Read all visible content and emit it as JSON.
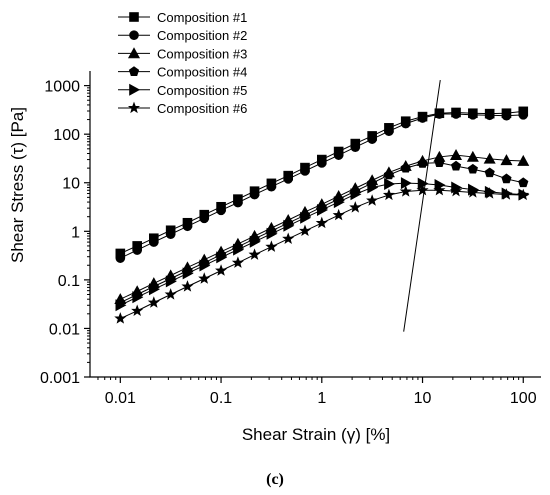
{
  "chart_data": {
    "type": "line",
    "xscale": "log",
    "yscale": "log",
    "xlabel": "Shear Strain (γ) [%]",
    "ylabel": "Shear Stress (τ) [Pa]",
    "xlim": [
      0.005,
      150
    ],
    "ylim": [
      0.001,
      2000
    ],
    "xticks": [
      "0.01",
      "0.1",
      "1",
      "10",
      "100"
    ],
    "yticks": [
      "0.001",
      "0.01",
      "0.1",
      "1",
      "10",
      "100",
      "1000"
    ],
    "legend_position": "top-left",
    "caption": "(c)",
    "x": [
      0.01,
      0.0147,
      0.0215,
      0.0316,
      0.0464,
      0.0681,
      0.1,
      0.147,
      0.215,
      0.316,
      0.464,
      0.681,
      1,
      1.47,
      2.15,
      3.16,
      4.64,
      6.81,
      10,
      14.7,
      21.5,
      31.6,
      46.4,
      68.1,
      100
    ],
    "series": [
      {
        "name": "Composition #1",
        "marker": "square",
        "values": [
          0.35,
          0.5,
          0.72,
          1.05,
          1.5,
          2.2,
          3.2,
          4.6,
          6.7,
          9.7,
          14,
          20.5,
          30,
          44,
          64,
          92,
          135,
          185,
          230,
          270,
          280,
          270,
          265,
          270,
          295
        ]
      },
      {
        "name": "Composition #2",
        "marker": "circle",
        "values": [
          0.28,
          0.41,
          0.6,
          0.87,
          1.27,
          1.85,
          2.7,
          3.9,
          5.7,
          8.3,
          12,
          17.5,
          25.5,
          37,
          54,
          79,
          115,
          165,
          215,
          260,
          260,
          250,
          245,
          240,
          250
        ]
      },
      {
        "name": "Composition #3",
        "marker": "triangle-up",
        "values": [
          0.04,
          0.058,
          0.085,
          0.123,
          0.18,
          0.26,
          0.38,
          0.55,
          0.8,
          1.17,
          1.7,
          2.5,
          3.6,
          5.3,
          7.7,
          11.2,
          16.3,
          22,
          28,
          34,
          37,
          34,
          31,
          29,
          28
        ]
      },
      {
        "name": "Composition #4",
        "marker": "pentagon",
        "values": [
          0.034,
          0.05,
          0.073,
          0.106,
          0.155,
          0.225,
          0.33,
          0.48,
          0.7,
          1.02,
          1.48,
          2.15,
          3.15,
          4.6,
          6.7,
          9.8,
          14.5,
          20,
          25,
          26,
          22,
          19,
          16,
          12,
          10
        ]
      },
      {
        "name": "Composition #5",
        "marker": "triangle-right",
        "values": [
          0.03,
          0.044,
          0.064,
          0.093,
          0.136,
          0.198,
          0.29,
          0.42,
          0.61,
          0.89,
          1.3,
          1.9,
          2.75,
          4.0,
          5.8,
          8.0,
          9.4,
          9.8,
          9.6,
          9.0,
          8.0,
          7.2,
          6.5,
          6.0,
          5.7
        ]
      },
      {
        "name": "Composition #6",
        "marker": "star",
        "values": [
          0.016,
          0.023,
          0.034,
          0.05,
          0.073,
          0.106,
          0.155,
          0.225,
          0.33,
          0.48,
          0.7,
          1.02,
          1.48,
          2.15,
          3.1,
          4.3,
          5.6,
          6.6,
          7.0,
          7.0,
          6.7,
          6.3,
          6.0,
          5.7,
          5.6
        ]
      }
    ],
    "annotation_line": {
      "x": [
        6.5,
        15
      ],
      "y": [
        0.0086,
        1300
      ]
    }
  }
}
